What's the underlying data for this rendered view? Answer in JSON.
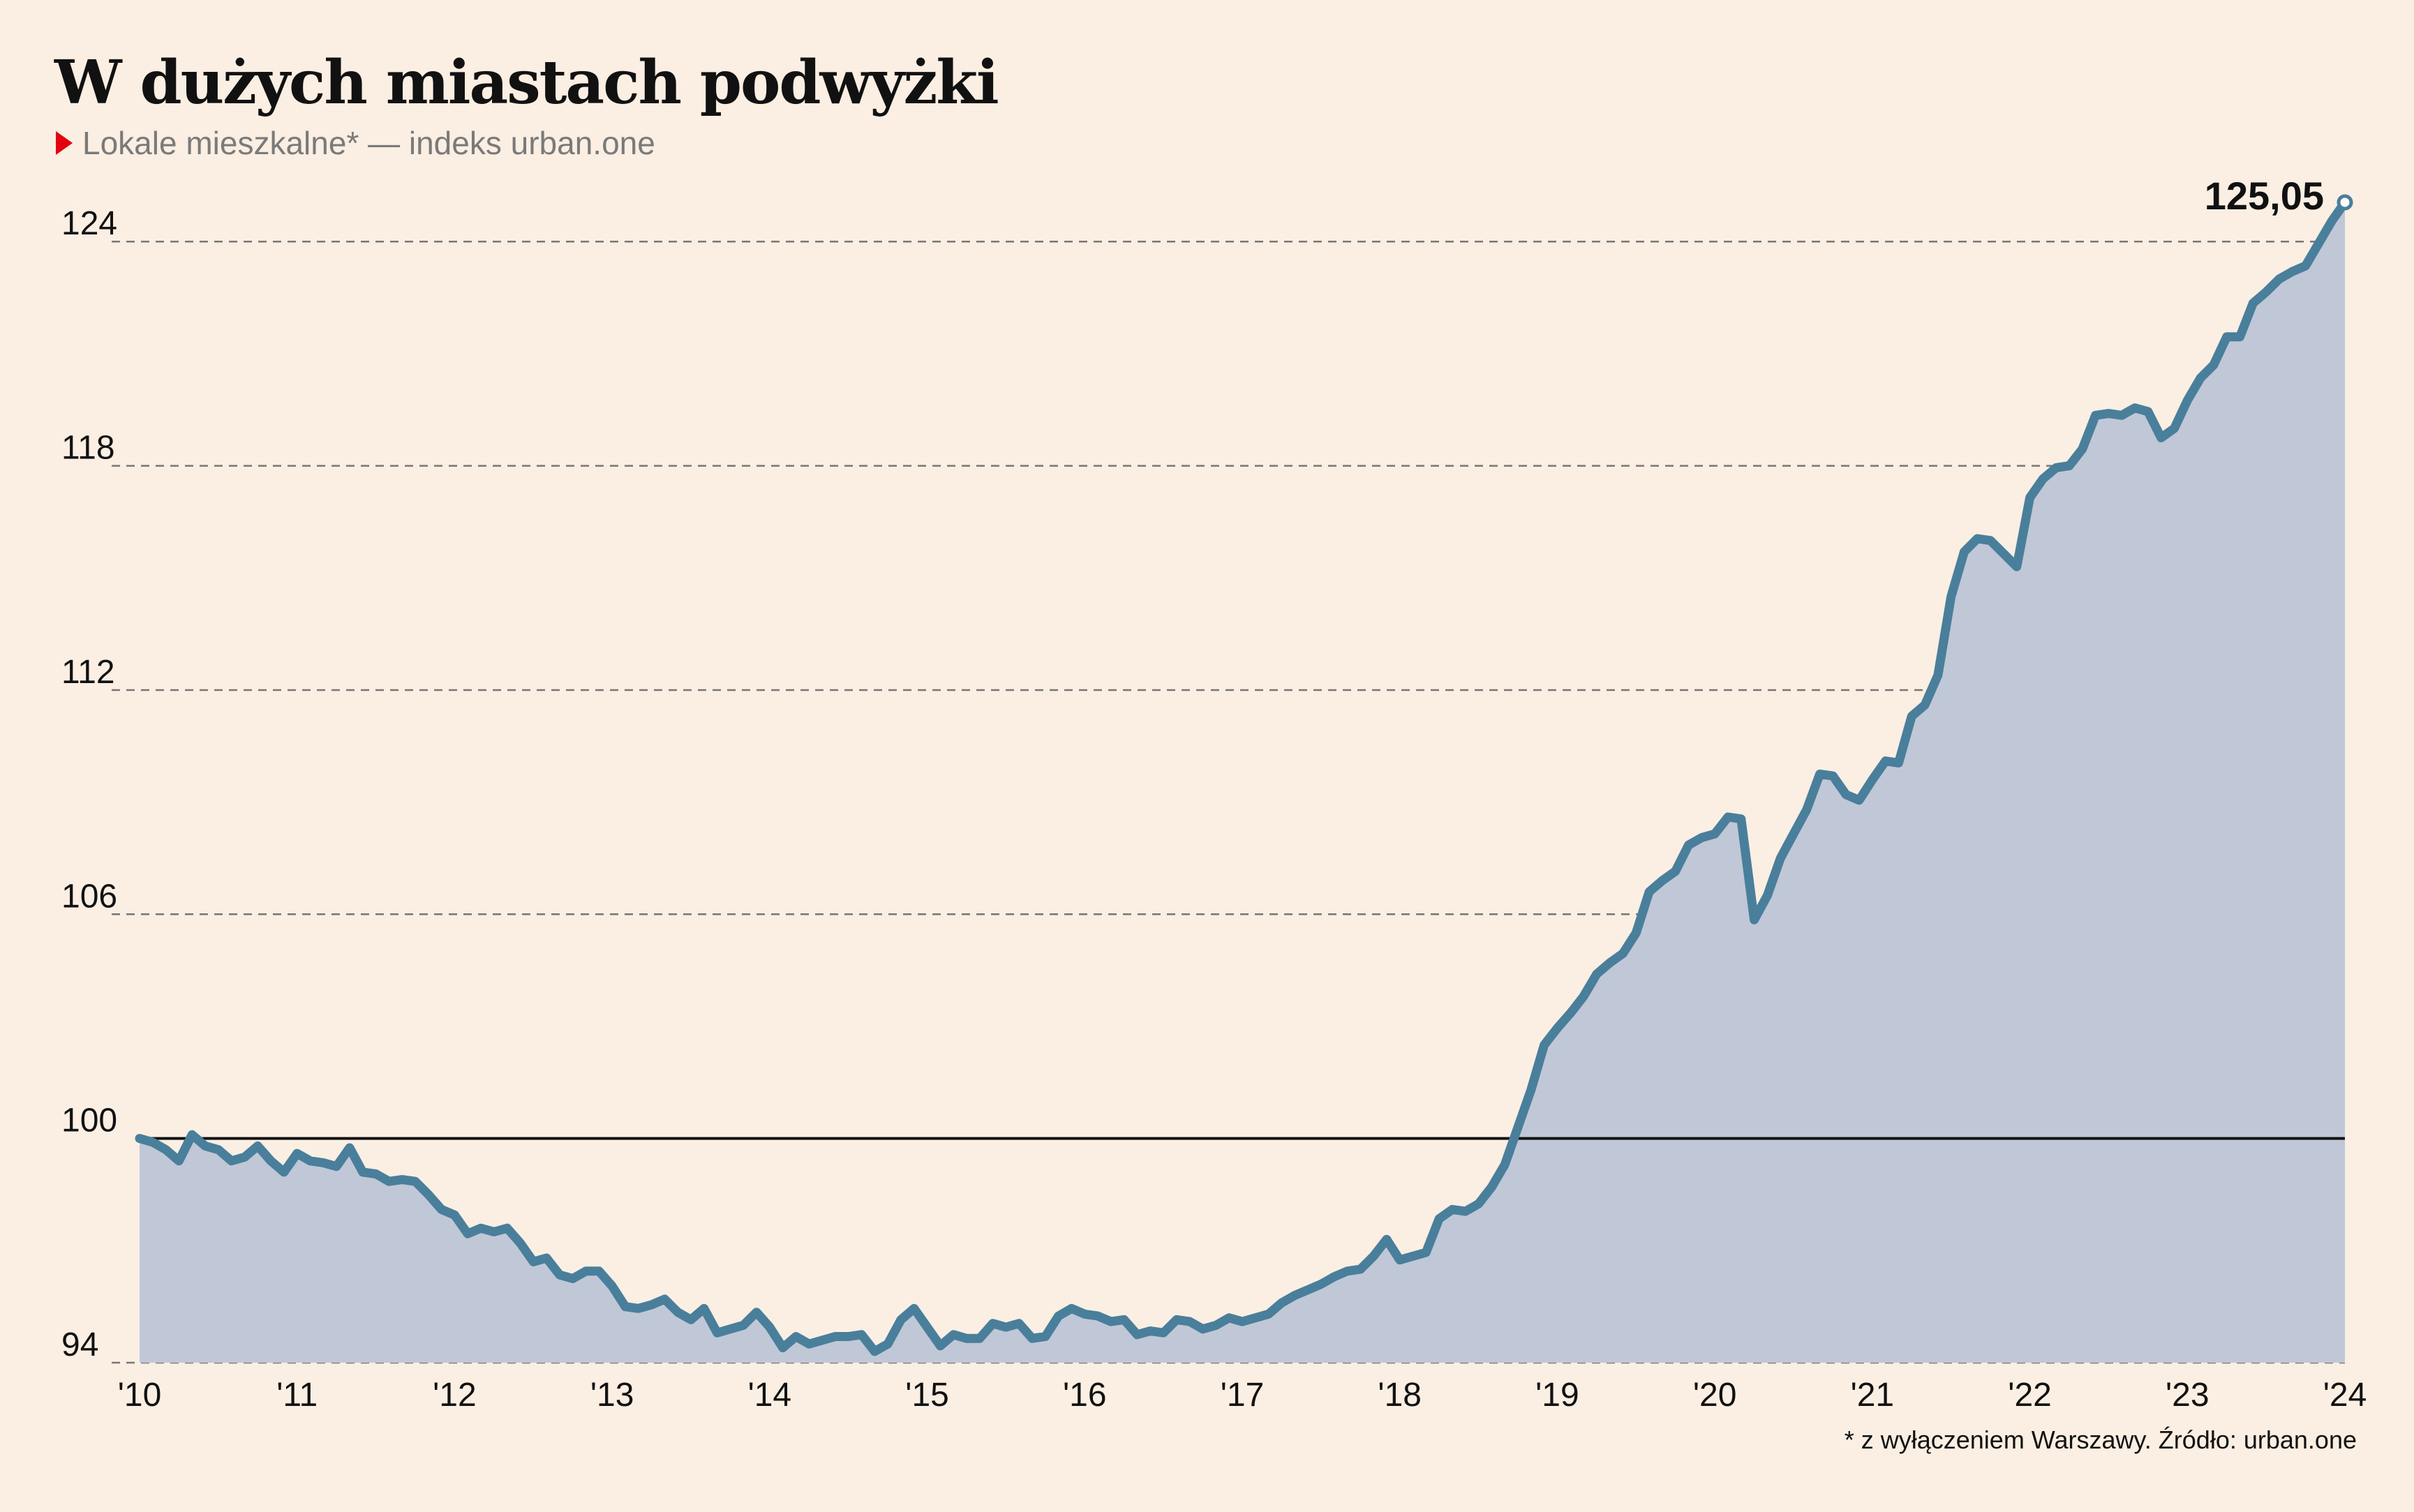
{
  "chart_data": {
    "type": "area",
    "title": "W dużych miastach podwyżki",
    "subtitle": "Lokale mieszkalne* — indeks urban.one",
    "footnote": "* z wyłączeniem Warszawy. Źródło: urban.one",
    "series": [
      {
        "values": [
          100.0,
          99.9,
          99.7,
          99.4,
          100.1,
          99.8,
          99.7,
          99.4,
          99.5,
          99.8,
          99.4,
          99.1,
          99.6,
          99.4,
          99.35,
          99.25,
          99.75,
          99.1,
          99.05,
          98.85,
          98.9,
          98.85,
          98.5,
          98.1,
          97.95,
          97.45,
          97.6,
          97.5,
          97.6,
          97.2,
          96.7,
          96.8,
          96.35,
          96.25,
          96.45,
          96.45,
          96.05,
          95.5,
          95.45,
          95.55,
          95.7,
          95.35,
          95.15,
          95.45,
          94.8,
          94.9,
          95.0,
          95.35,
          94.95,
          94.4,
          94.7,
          94.5,
          94.6,
          94.7,
          94.7,
          94.75,
          94.3,
          94.5,
          95.15,
          95.45,
          94.95,
          94.45,
          94.75,
          94.65,
          94.65,
          95.05,
          94.95,
          95.05,
          94.65,
          94.7,
          95.25,
          95.45,
          95.3,
          95.25,
          95.1,
          95.15,
          94.75,
          94.85,
          94.8,
          95.15,
          95.1,
          94.9,
          95.0,
          95.2,
          95.1,
          95.2,
          95.3,
          95.6,
          95.8,
          95.95,
          96.1,
          96.3,
          96.45,
          96.5,
          96.85,
          97.3,
          96.75,
          96.85,
          96.95,
          97.85,
          98.1,
          98.05,
          98.25,
          98.7,
          99.3,
          100.3,
          101.3,
          102.5,
          102.95,
          103.35,
          103.8,
          104.4,
          104.7,
          104.95,
          105.5,
          106.6,
          106.9,
          107.15,
          107.85,
          108.05,
          108.15,
          108.6,
          108.55,
          105.85,
          106.5,
          107.5,
          108.15,
          108.8,
          109.75,
          109.7,
          109.2,
          109.05,
          109.6,
          110.1,
          110.05,
          111.3,
          111.6,
          112.4,
          114.5,
          115.7,
          116.05,
          116.0,
          115.65,
          115.3,
          117.15,
          117.65,
          117.95,
          118.0,
          118.45,
          119.35,
          119.4,
          119.35,
          119.55,
          119.45,
          118.75,
          119.0,
          119.75,
          120.35,
          120.7,
          121.45,
          121.45,
          122.35,
          122.65,
          123.0,
          123.2,
          123.35,
          123.95,
          124.55,
          125.05
        ]
      }
    ],
    "x_start": "2010-01",
    "x_end": "2024-01",
    "ylim": [
      94,
      125.05
    ],
    "yticks": [
      {
        "value": 94,
        "label": "94"
      },
      {
        "value": 100,
        "label": "100"
      },
      {
        "value": 106,
        "label": "106"
      },
      {
        "value": 112,
        "label": "112"
      },
      {
        "value": 118,
        "label": "118"
      },
      {
        "value": 124,
        "label": "124"
      }
    ],
    "xticks": [
      "'10",
      "'11",
      "'12",
      "'13",
      "'14",
      "'15",
      "'16",
      "'17",
      "'18",
      "'19",
      "'20",
      "'21",
      "'22",
      "'23",
      "'24"
    ],
    "baseline": 100,
    "last_value_label": "125,05",
    "grid": true,
    "colors": {
      "line": "#4a7f9c",
      "fill": "#c0c7d6",
      "background": "#fbeee2",
      "grid": "#777777",
      "baseline": "#111111",
      "subtitle_marker": "#e3000f"
    }
  }
}
